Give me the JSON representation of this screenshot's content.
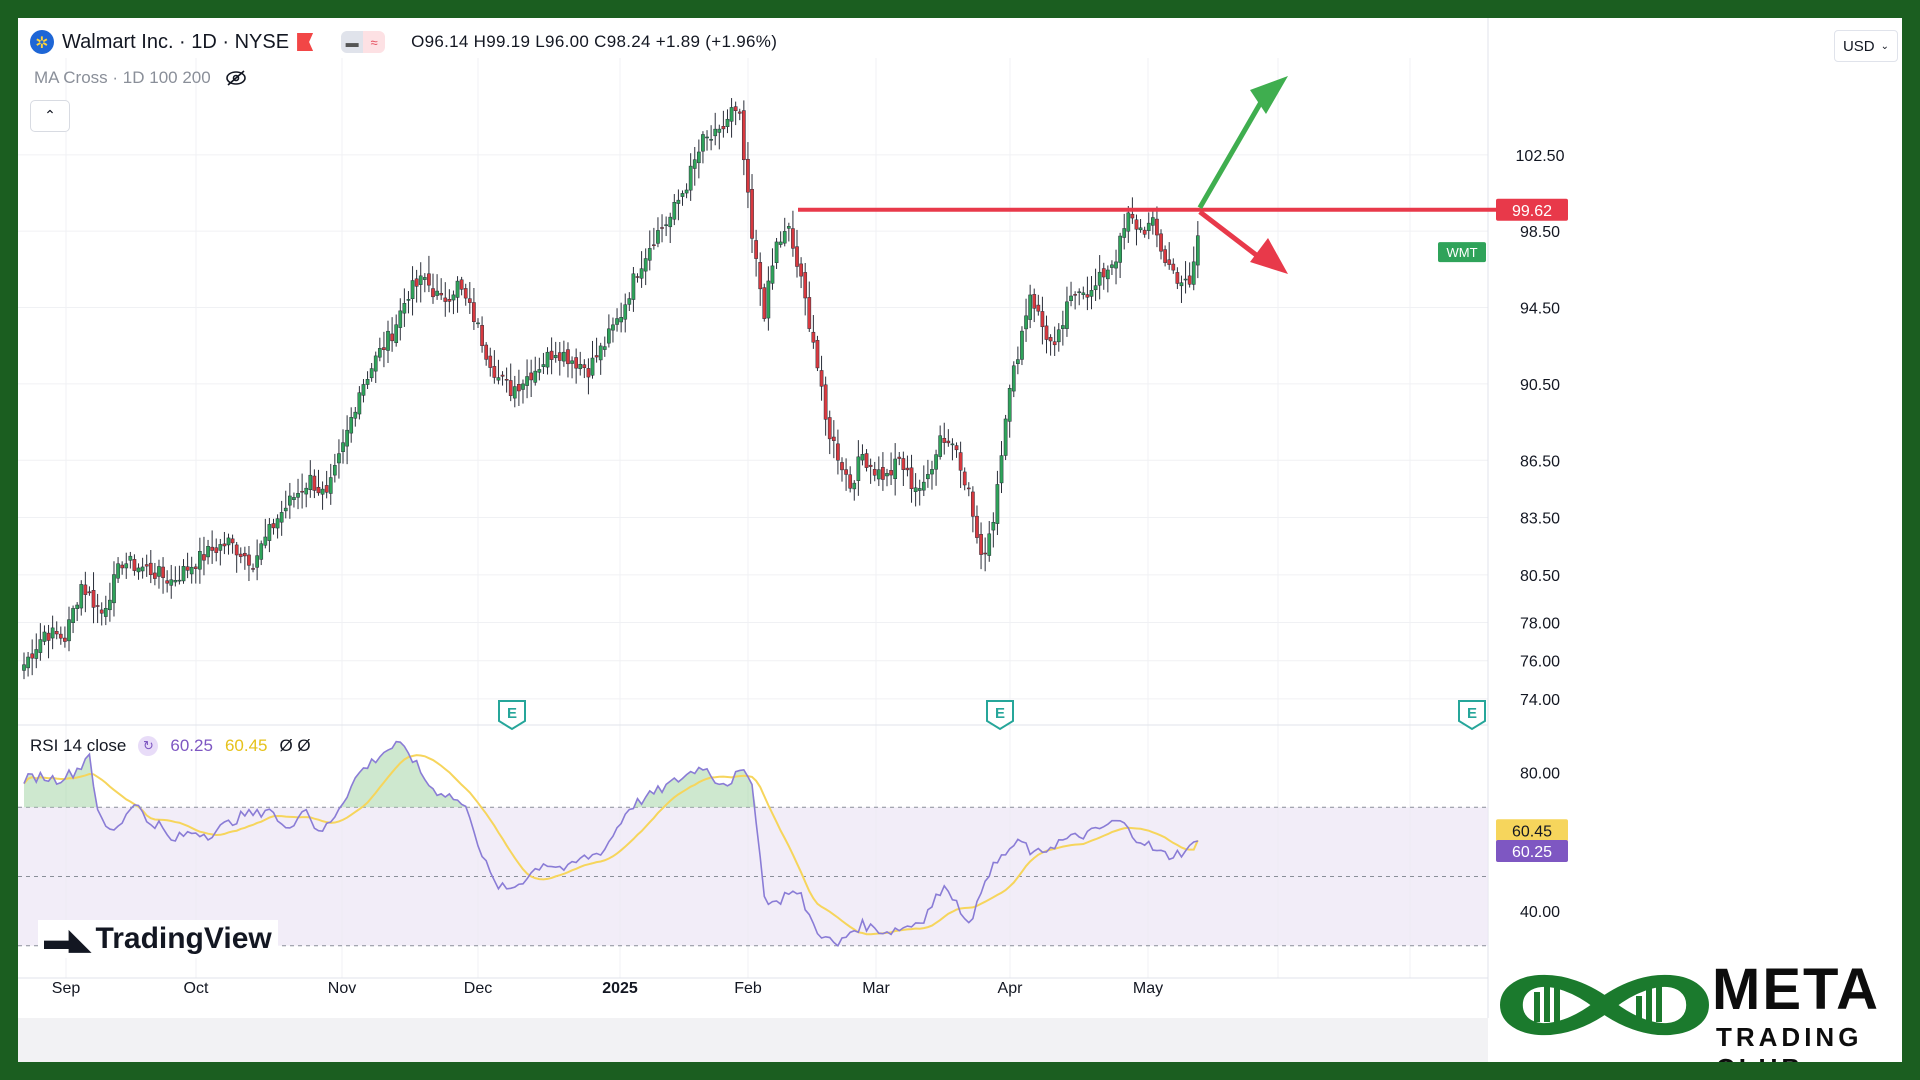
{
  "header": {
    "title": "Walmart Inc. · 1D · NYSE",
    "ohlc": "O96.14 H99.19 L96.00 C98.24 +1.89 (+1.96%)",
    "indicator_label": "MA Cross · 1D 100 200",
    "currency": "USD"
  },
  "rsi": {
    "label": "RSI 14 close",
    "value": "60.25",
    "ma_value": "60.45",
    "extra": "Ø Ø"
  },
  "branding": {
    "tradingview": "TradingView",
    "meta_title": "META",
    "meta_subtitle": "TRADING CLUB"
  },
  "colors": {
    "up": "#2fa35a",
    "down": "#d8393f",
    "resistance": "#e8394a",
    "arrow_up": "#3fae4f",
    "arrow_down": "#e8394a",
    "rsi_line": "#8a7cd6",
    "rsi_ma": "#f6d55c",
    "frame": "#1b5e20"
  },
  "chart_data": {
    "type": "candlestick",
    "symbol": "WMT",
    "title": "Walmart Inc. · 1D · NYSE",
    "ylim": [
      73,
      106
    ],
    "price_ticks": [
      "102.50",
      "98.50",
      "94.50",
      "90.50",
      "86.50",
      "83.50",
      "80.50",
      "78.00",
      "76.00",
      "74.00"
    ],
    "x_labels": [
      "Sep",
      "Oct",
      "Nov",
      "Dec",
      "2025",
      "Feb",
      "Mar",
      "Apr",
      "May"
    ],
    "resistance_level": "99.62",
    "last_price_label": "WMT",
    "earnings_markers": [
      "E",
      "E",
      "E"
    ],
    "anchors": [
      [
        0,
        75.8
      ],
      [
        5,
        77.5
      ],
      [
        10,
        77.2
      ],
      [
        14,
        80.0
      ],
      [
        19,
        78.5
      ],
      [
        24,
        81.2
      ],
      [
        30,
        80.8
      ],
      [
        36,
        80.2
      ],
      [
        42,
        81.2
      ],
      [
        46,
        81.8
      ],
      [
        50,
        82.2
      ],
      [
        56,
        81.2
      ],
      [
        62,
        83.5
      ],
      [
        66,
        84.6
      ],
      [
        70,
        85.5
      ],
      [
        74,
        84.5
      ],
      [
        78,
        87.2
      ],
      [
        82,
        90.2
      ],
      [
        86,
        91.8
      ],
      [
        90,
        93.2
      ],
      [
        94,
        95.3
      ],
      [
        98,
        96.0
      ],
      [
        102,
        94.8
      ],
      [
        106,
        95.7
      ],
      [
        110,
        94.0
      ],
      [
        113,
        92.2
      ],
      [
        116,
        90.8
      ],
      [
        119,
        90.2
      ],
      [
        122,
        90.7
      ],
      [
        126,
        91.5
      ],
      [
        130,
        92.3
      ],
      [
        134,
        91.8
      ],
      [
        138,
        91.3
      ],
      [
        142,
        92.6
      ],
      [
        146,
        94.2
      ],
      [
        150,
        96.5
      ],
      [
        154,
        98.2
      ],
      [
        158,
        99.2
      ],
      [
        162,
        101.0
      ],
      [
        166,
        103.2
      ],
      [
        170,
        103.5
      ],
      [
        173,
        104.8
      ],
      [
        175,
        104.3
      ],
      [
        178,
        98.0
      ],
      [
        181,
        94.3
      ],
      [
        184,
        97.8
      ],
      [
        187,
        98.5
      ],
      [
        190,
        95.8
      ],
      [
        193,
        92.8
      ],
      [
        196,
        88.5
      ],
      [
        199,
        86.8
      ],
      [
        202,
        85.2
      ],
      [
        205,
        86.8
      ],
      [
        208,
        86.0
      ],
      [
        211,
        85.6
      ],
      [
        214,
        86.5
      ],
      [
        217,
        85.3
      ],
      [
        220,
        85.0
      ],
      [
        224,
        87.8
      ],
      [
        228,
        87.2
      ],
      [
        231,
        84.8
      ],
      [
        234,
        81.2
      ],
      [
        237,
        83.5
      ],
      [
        240,
        89.0
      ],
      [
        243,
        92.2
      ],
      [
        246,
        95.3
      ],
      [
        249,
        93.5
      ],
      [
        252,
        92.2
      ],
      [
        255,
        94.4
      ],
      [
        258,
        95.7
      ],
      [
        261,
        95.2
      ],
      [
        264,
        96.3
      ],
      [
        267,
        97.2
      ],
      [
        270,
        99.2
      ],
      [
        273,
        98.6
      ],
      [
        276,
        98.8
      ],
      [
        279,
        97.0
      ],
      [
        282,
        96.1
      ],
      [
        285,
        95.5
      ],
      [
        287,
        98.24
      ]
    ],
    "rsi": {
      "label": "RSI 14 close",
      "value": 60.25,
      "ma_value": 60.45,
      "ylim": [
        25,
        90
      ],
      "ticks": [
        "80.00",
        "40.00"
      ],
      "band": [
        70,
        30
      ],
      "anchors": [
        [
          0,
          78
        ],
        [
          4,
          79
        ],
        [
          8,
          78
        ],
        [
          12,
          80
        ],
        [
          14,
          82
        ],
        [
          16,
          86
        ],
        [
          18,
          68
        ],
        [
          21,
          63
        ],
        [
          24,
          66
        ],
        [
          27,
          72
        ],
        [
          30,
          66
        ],
        [
          33,
          65
        ],
        [
          36,
          60
        ],
        [
          39,
          62
        ],
        [
          42,
          63
        ],
        [
          45,
          62
        ],
        [
          48,
          64
        ],
        [
          51,
          66
        ],
        [
          54,
          68
        ],
        [
          57,
          68
        ],
        [
          60,
          70
        ],
        [
          63,
          64
        ],
        [
          66,
          66
        ],
        [
          69,
          70
        ],
        [
          72,
          62
        ],
        [
          75,
          66
        ],
        [
          78,
          72
        ],
        [
          82,
          80
        ],
        [
          85,
          83
        ],
        [
          88,
          86
        ],
        [
          91,
          88
        ],
        [
          94,
          86
        ],
        [
          97,
          80
        ],
        [
          100,
          75
        ],
        [
          103,
          74
        ],
        [
          106,
          72
        ],
        [
          109,
          68
        ],
        [
          112,
          56
        ],
        [
          115,
          48
        ],
        [
          118,
          46
        ],
        [
          121,
          48
        ],
        [
          124,
          51
        ],
        [
          127,
          54
        ],
        [
          130,
          53
        ],
        [
          133,
          52
        ],
        [
          136,
          55
        ],
        [
          139,
          56
        ],
        [
          142,
          58
        ],
        [
          145,
          64
        ],
        [
          148,
          70
        ],
        [
          151,
          72
        ],
        [
          154,
          74
        ],
        [
          157,
          76
        ],
        [
          160,
          78
        ],
        [
          163,
          80
        ],
        [
          166,
          82
        ],
        [
          169,
          78
        ],
        [
          172,
          77
        ],
        [
          175,
          80
        ],
        [
          178,
          78
        ],
        [
          181,
          44
        ],
        [
          184,
          42
        ],
        [
          187,
          46
        ],
        [
          190,
          44
        ],
        [
          193,
          36
        ],
        [
          196,
          32
        ],
        [
          199,
          30
        ],
        [
          202,
          34
        ],
        [
          205,
          36
        ],
        [
          208,
          35
        ],
        [
          211,
          34
        ],
        [
          214,
          35
        ],
        [
          217,
          36
        ],
        [
          220,
          38
        ],
        [
          223,
          44
        ],
        [
          226,
          47
        ],
        [
          229,
          40
        ],
        [
          232,
          37
        ],
        [
          235,
          50
        ],
        [
          238,
          54
        ],
        [
          241,
          58
        ],
        [
          244,
          60
        ],
        [
          247,
          56
        ],
        [
          250,
          58
        ],
        [
          253,
          60
        ],
        [
          256,
          61
        ],
        [
          259,
          62
        ],
        [
          262,
          63
        ],
        [
          265,
          65
        ],
        [
          268,
          66
        ],
        [
          271,
          62
        ],
        [
          274,
          60
        ],
        [
          277,
          57
        ],
        [
          280,
          56
        ],
        [
          283,
          57
        ],
        [
          285,
          58
        ],
        [
          287,
          60.25
        ]
      ]
    }
  }
}
